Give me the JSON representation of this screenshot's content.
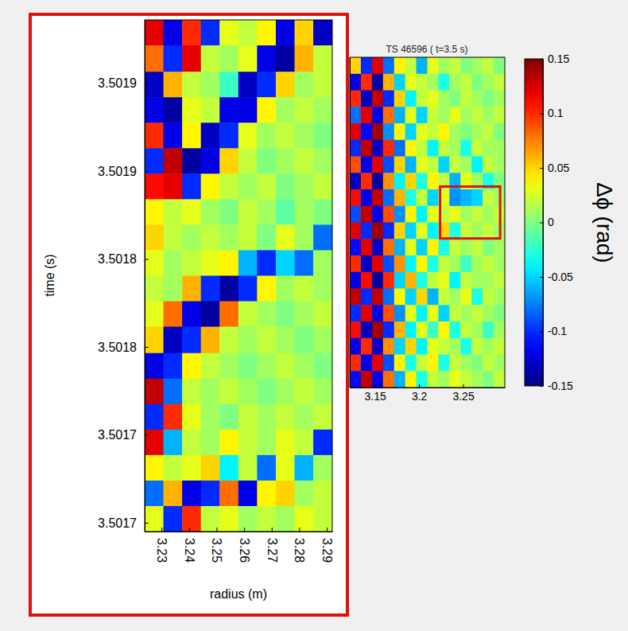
{
  "chart_data": [
    {
      "type": "heatmap",
      "title": "TS 46596   ( t=3.5 s)",
      "tick_labels": "x",
      "xlim": [
        3.1214,
        3.2973
      ],
      "ylim": [
        3.50086,
        3.50271
      ],
      "xticks": [
        3.15,
        3.2,
        3.25
      ],
      "x": [
        3.1277,
        3.1403,
        3.1528,
        3.1654,
        3.178,
        3.1905,
        3.2031,
        3.2157,
        3.2282,
        3.2408,
        3.2534,
        3.2659,
        3.2785,
        3.291
      ],
      "y": [
        3.502664,
        3.502571,
        3.502479,
        3.502386,
        3.502294,
        3.502201,
        3.502109,
        3.502016,
        3.501924,
        3.501831,
        3.501739,
        3.501646,
        3.501554,
        3.501461,
        3.501369,
        3.501276,
        3.501184,
        3.501091,
        3.500999,
        3.500906
      ],
      "z": [
        [
          0.05,
          -0.1,
          0.12,
          -0.08,
          0.04,
          0.02,
          -0.06,
          0.03,
          0.01,
          0.02,
          0.0,
          0.01,
          0.02,
          0.0
        ],
        [
          -0.12,
          0.1,
          -0.14,
          0.06,
          -0.05,
          0.03,
          0.02,
          0.01,
          -0.03,
          0.01,
          0.02,
          0.0,
          0.01,
          0.02
        ],
        [
          0.1,
          -0.13,
          0.13,
          -0.1,
          0.05,
          -0.04,
          0.02,
          0.03,
          0.01,
          0.0,
          0.02,
          0.01,
          0.0,
          0.01
        ],
        [
          -0.08,
          0.12,
          -0.12,
          0.08,
          -0.06,
          0.03,
          -0.05,
          0.02,
          0.01,
          0.03,
          0.01,
          0.02,
          0.01,
          0.02
        ],
        [
          0.12,
          -0.11,
          0.14,
          -0.07,
          0.04,
          -0.05,
          0.03,
          0.02,
          0.04,
          0.01,
          0.0,
          0.01,
          0.02,
          0.0
        ],
        [
          -0.1,
          0.13,
          -0.13,
          0.1,
          -0.08,
          0.04,
          0.02,
          -0.04,
          0.02,
          0.01,
          -0.03,
          0.02,
          0.01,
          0.01
        ],
        [
          0.09,
          -0.12,
          0.12,
          -0.09,
          0.05,
          -0.06,
          0.03,
          0.02,
          -0.05,
          0.02,
          0.01,
          -0.04,
          0.02,
          0.01
        ],
        [
          -0.13,
          0.1,
          -0.14,
          0.07,
          -0.04,
          0.05,
          -0.03,
          0.04,
          0.02,
          -0.06,
          0.03,
          0.01,
          -0.03,
          0.0
        ],
        [
          0.11,
          -0.12,
          0.13,
          -0.08,
          0.06,
          -0.03,
          0.02,
          -0.05,
          0.03,
          -0.07,
          -0.06,
          -0.05,
          0.02,
          0.01
        ],
        [
          -0.09,
          0.13,
          -0.12,
          0.09,
          -0.07,
          0.04,
          -0.04,
          0.03,
          0.02,
          0.03,
          0.01,
          0.02,
          0.01,
          0.02
        ],
        [
          0.12,
          -0.1,
          0.14,
          -0.1,
          0.05,
          -0.05,
          0.03,
          -0.04,
          0.05,
          -0.03,
          0.02,
          0.01,
          0.02,
          0.01
        ],
        [
          -0.11,
          0.12,
          -0.13,
          0.08,
          -0.06,
          0.03,
          -0.05,
          0.04,
          -0.03,
          0.02,
          0.01,
          0.02,
          0.0,
          0.01
        ],
        [
          0.1,
          -0.13,
          0.12,
          -0.09,
          0.07,
          -0.04,
          0.04,
          -0.03,
          0.02,
          0.01,
          -0.02,
          0.01,
          0.02,
          0.01
        ],
        [
          -0.12,
          0.11,
          -0.14,
          0.1,
          -0.05,
          0.06,
          -0.03,
          0.02,
          0.03,
          -0.04,
          0.02,
          0.01,
          0.01,
          0.02
        ],
        [
          0.13,
          -0.1,
          0.13,
          -0.08,
          0.04,
          -0.05,
          0.05,
          -0.06,
          0.02,
          0.01,
          0.03,
          -0.03,
          0.02,
          0.01
        ],
        [
          -0.1,
          0.12,
          -0.12,
          0.09,
          -0.07,
          0.03,
          -0.04,
          0.03,
          -0.05,
          0.02,
          0.01,
          0.02,
          0.01,
          0.0
        ],
        [
          0.11,
          -0.13,
          0.14,
          -0.1,
          0.06,
          -0.04,
          0.03,
          -0.02,
          0.04,
          -0.03,
          0.02,
          0.01,
          -0.02,
          0.01
        ],
        [
          -0.12,
          0.1,
          -0.13,
          0.07,
          -0.05,
          0.05,
          -0.04,
          0.03,
          0.02,
          0.01,
          -0.03,
          0.02,
          0.01,
          0.02
        ],
        [
          0.1,
          -0.12,
          0.12,
          -0.09,
          0.04,
          -0.03,
          0.02,
          0.04,
          -0.03,
          0.02,
          0.01,
          0.0,
          0.02,
          0.01
        ],
        [
          -0.11,
          0.13,
          -0.12,
          0.08,
          -0.06,
          0.04,
          -0.03,
          0.02,
          0.01,
          0.03,
          0.02,
          0.01,
          0.0,
          0.02
        ]
      ],
      "colorbar": {
        "label": "Δϕ (rad)",
        "range": [
          -0.15,
          0.15
        ],
        "ticks": [
          -0.15,
          -0.1,
          -0.05,
          0,
          0.05,
          0.1,
          0.15
        ]
      }
    },
    {
      "type": "heatmap",
      "xlabel": "radius (m)",
      "ylabel": "time (s)",
      "xlim": [
        3.2239,
        3.292
      ],
      "ylim": [
        3.501695,
        3.501986
      ],
      "xticks": [
        3.23,
        3.24,
        3.25,
        3.26,
        3.27,
        3.28,
        3.29
      ],
      "yticks": [
        {
          "value": 3.5017,
          "label": "3.5017"
        },
        {
          "value": 3.50175,
          "label": "3.5017"
        },
        {
          "value": 3.5018,
          "label": "3.5018"
        },
        {
          "value": 3.50185,
          "label": "3.5018"
        },
        {
          "value": 3.5019,
          "label": "3.5019"
        },
        {
          "value": 3.50195,
          "label": "3.5019"
        }
      ],
      "x": [
        3.2273,
        3.2341,
        3.2409,
        3.2477,
        3.2545,
        3.2613,
        3.2681,
        3.2749,
        3.2817,
        3.2885
      ],
      "y": [
        3.501979,
        3.501964,
        3.501949,
        3.501935,
        3.50192,
        3.501906,
        3.501891,
        3.501877,
        3.501862,
        3.501848,
        3.501833,
        3.501819,
        3.501804,
        3.501789,
        3.501775,
        3.50176,
        3.501746,
        3.501731,
        3.501717,
        3.501702
      ],
      "z": [
        [
          0.12,
          -0.12,
          0.1,
          -0.1,
          0.03,
          0.02,
          0.04,
          -0.12,
          0.05,
          -0.13
        ],
        [
          0.08,
          -0.1,
          0.12,
          0.02,
          0.01,
          0.03,
          -0.12,
          -0.14,
          0.06,
          0.02
        ],
        [
          -0.13,
          0.06,
          0.02,
          0.01,
          -0.02,
          -0.13,
          -0.1,
          0.05,
          0.01,
          0.02
        ],
        [
          -0.12,
          -0.14,
          0.03,
          0.02,
          -0.12,
          -0.12,
          0.04,
          0.01,
          0.02,
          0.01
        ],
        [
          0.1,
          -0.12,
          0.04,
          -0.13,
          -0.1,
          0.03,
          0.01,
          0.02,
          0.01,
          0.0
        ],
        [
          -0.1,
          0.13,
          -0.14,
          -0.12,
          0.05,
          0.02,
          0.0,
          0.01,
          0.02,
          0.01
        ],
        [
          0.11,
          0.12,
          -0.1,
          0.04,
          0.02,
          0.01,
          0.02,
          0.0,
          0.01,
          0.02
        ],
        [
          0.04,
          0.02,
          0.03,
          0.01,
          0.0,
          0.02,
          0.01,
          -0.01,
          0.01,
          0.0
        ],
        [
          0.05,
          0.02,
          0.01,
          0.02,
          0.01,
          0.02,
          0.0,
          0.03,
          0.01,
          -0.08
        ],
        [
          0.03,
          0.01,
          0.02,
          0.03,
          0.04,
          -0.06,
          -0.1,
          -0.05,
          -0.08,
          0.01
        ],
        [
          0.02,
          0.01,
          0.06,
          -0.1,
          -0.14,
          -0.1,
          0.04,
          0.01,
          0.02,
          0.01
        ],
        [
          0.03,
          0.08,
          -0.12,
          -0.14,
          0.08,
          0.02,
          0.01,
          0.0,
          0.01,
          0.02
        ],
        [
          0.05,
          -0.13,
          -0.1,
          0.06,
          0.02,
          0.01,
          0.02,
          0.01,
          0.0,
          0.01
        ],
        [
          -0.12,
          -0.1,
          0.04,
          0.02,
          0.01,
          0.0,
          0.01,
          0.02,
          0.01,
          0.0
        ],
        [
          0.13,
          -0.08,
          0.02,
          0.01,
          0.02,
          0.01,
          0.0,
          0.01,
          0.02,
          0.01
        ],
        [
          -0.1,
          0.1,
          0.03,
          0.01,
          0.0,
          0.02,
          0.01,
          0.02,
          0.01,
          0.02
        ],
        [
          0.12,
          -0.06,
          0.02,
          0.01,
          0.04,
          0.02,
          0.01,
          0.03,
          0.02,
          -0.1
        ],
        [
          0.04,
          0.02,
          0.03,
          0.05,
          -0.04,
          0.02,
          -0.08,
          0.03,
          -0.06,
          0.01
        ],
        [
          -0.08,
          0.06,
          -0.12,
          -0.1,
          0.08,
          -0.12,
          0.04,
          0.05,
          0.01,
          0.02
        ],
        [
          0.03,
          -0.1,
          0.1,
          0.02,
          0.03,
          0.01,
          0.02,
          0.01,
          0.03,
          0.02
        ]
      ]
    }
  ]
}
